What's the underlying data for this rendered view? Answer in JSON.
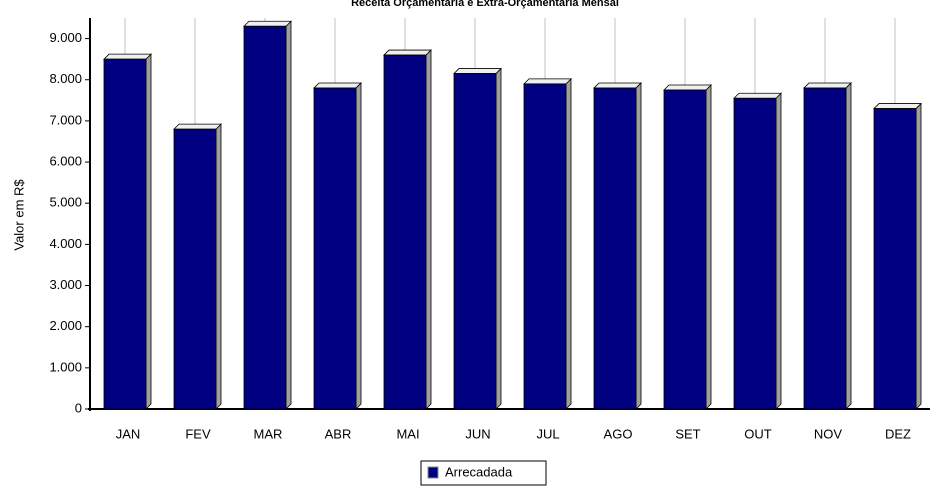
{
  "chart_data": {
    "type": "bar",
    "title": "Receita Orçamentária e Extra-Orçamentária Mensal",
    "y_label": "Valor em R$",
    "categories": [
      "JAN",
      "FEV",
      "MAR",
      "ABR",
      "MAI",
      "JUN",
      "JUL",
      "AGO",
      "SET",
      "OUT",
      "NOV",
      "DEZ"
    ],
    "series": [
      {
        "name": "Arrecadada",
        "color": "#000080",
        "values": [
          8500,
          6800,
          9300,
          7800,
          8600,
          8150,
          7900,
          7800,
          7750,
          7550,
          7800,
          7300
        ]
      }
    ],
    "ylim": [
      0,
      9500
    ],
    "yticks": [
      0,
      {
        "value": 1000,
        "label": "1.000"
      },
      {
        "value": 2000,
        "label": "2.000"
      },
      {
        "value": 3000,
        "label": "3.000"
      },
      {
        "value": 4000,
        "label": "4.000"
      },
      {
        "value": 5000,
        "label": "5.000"
      },
      {
        "value": 6000,
        "label": "6.000"
      },
      {
        "value": 7000,
        "label": "7.000"
      },
      {
        "value": 8000,
        "label": "8.000"
      },
      {
        "value": 9000,
        "label": "9.000"
      }
    ]
  }
}
